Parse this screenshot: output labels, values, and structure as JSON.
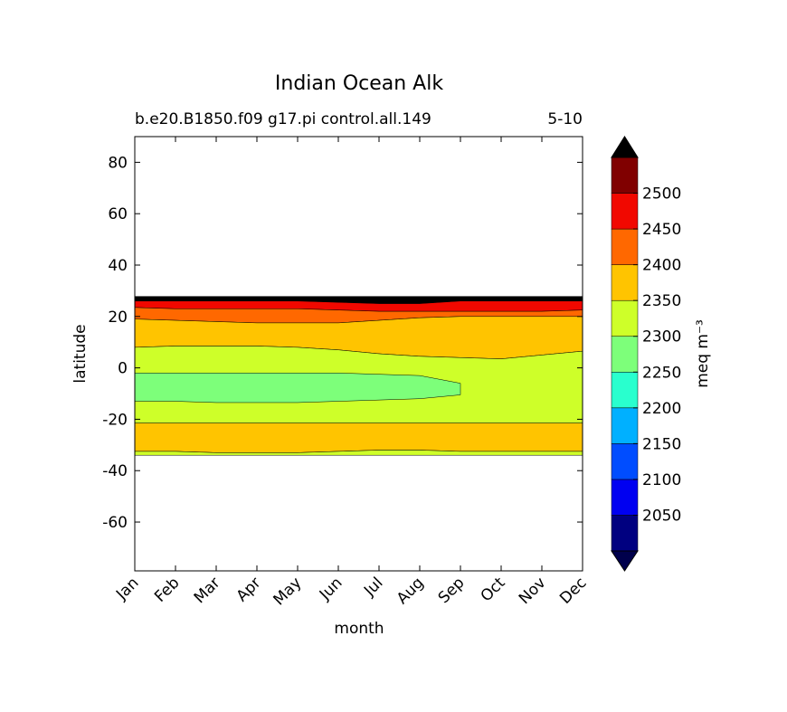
{
  "chart_data": {
    "type": "contourf",
    "title": "Indian Ocean Alk",
    "subtitle_left": "b.e20.B1850.f09 g17.pi control.all.149",
    "subtitle_right": "5-10",
    "xlabel": "month",
    "ylabel": "latitude",
    "categories": [
      "Jan",
      "Feb",
      "Mar",
      "Apr",
      "May",
      "Jun",
      "Jul",
      "Aug",
      "Sep",
      "Oct",
      "Nov",
      "Dec"
    ],
    "ylim": [
      -79,
      90
    ],
    "yticks": [
      80,
      60,
      40,
      20,
      0,
      -20,
      -40,
      -60
    ],
    "bands": [
      {
        "color": "#000000",
        "north": [
          27.8,
          27.8,
          27.8,
          27.8,
          27.8,
          27.8,
          27.8,
          27.8,
          27.8,
          27.8,
          27.8,
          27.8
        ],
        "south": [
          26,
          26,
          26,
          26,
          26,
          25.5,
          25,
          25,
          26,
          26,
          26,
          26
        ]
      },
      {
        "color": "#f10800",
        "north": [
          26,
          26,
          26,
          26,
          26,
          25.5,
          25,
          25,
          26,
          26,
          26,
          26
        ],
        "south": [
          23.5,
          23,
          23,
          23,
          23,
          22.5,
          22,
          22,
          22,
          22,
          22,
          22.5
        ]
      },
      {
        "color": "#ff6800",
        "north": [
          23.5,
          23,
          23,
          23,
          23,
          22.5,
          22,
          22,
          22,
          22,
          22,
          22.5
        ],
        "south": [
          19,
          18.5,
          18,
          17.5,
          17.5,
          17.5,
          18.5,
          19.5,
          20,
          20,
          20,
          20
        ]
      },
      {
        "color": "#ffc400",
        "north": [
          19,
          18.5,
          18,
          17.5,
          17.5,
          17.5,
          18.5,
          19.5,
          20,
          20,
          20,
          20
        ],
        "south": [
          8,
          8.5,
          8.5,
          8.5,
          8,
          7,
          5.5,
          4.5,
          4,
          3.5,
          5,
          6.5
        ]
      },
      {
        "color": "#ceff29",
        "north": [
          8,
          8.5,
          8.5,
          8.5,
          8,
          7,
          5.5,
          4.5,
          4,
          3.5,
          5,
          6.5
        ],
        "south": [
          -21.5,
          -21.5,
          -21.5,
          -21.5,
          -21.5,
          -21.5,
          -21.5,
          -21.5,
          -21.5,
          -21.5,
          -21.5,
          -21.5
        ]
      },
      {
        "color": "#ffc400",
        "north": [
          -21.5,
          -21.5,
          -21.5,
          -21.5,
          -21.5,
          -21.5,
          -21.5,
          -21.5,
          -21.5,
          -21.5,
          -21.5,
          -21.5
        ],
        "south": [
          -32.5,
          -32.5,
          -33,
          -33,
          -33,
          -32.5,
          -32,
          -32,
          -32.5,
          -32.5,
          -32.5,
          -32.5
        ]
      },
      {
        "color": "#ceff29",
        "north": [
          -32.5,
          -32.5,
          -33,
          -33,
          -33,
          -32.5,
          -32,
          -32,
          -32.5,
          -32.5,
          -32.5,
          -32.5
        ],
        "south": [
          -34,
          -34,
          -34,
          -34,
          -34,
          -34,
          -34,
          -34,
          -34,
          -34,
          -34,
          -34
        ]
      },
      {
        "color": "#7dff7a",
        "north": [
          -2,
          -2,
          -2,
          -2,
          -2,
          -2,
          -2.5,
          -3,
          -6,
          null,
          null,
          null
        ],
        "south": [
          -13,
          -13,
          -13.5,
          -13.5,
          -13.5,
          -13,
          -12.5,
          -12,
          -10.5,
          null,
          null,
          null
        ]
      }
    ],
    "colorbar": {
      "label": "meq m⁻³",
      "levels": [
        2000,
        2050,
        2100,
        2150,
        2200,
        2250,
        2300,
        2350,
        2400,
        2450,
        2500,
        2550
      ],
      "colors": [
        "#000080",
        "#0000f1",
        "#004dff",
        "#00b0ff",
        "#29ffce",
        "#7dff7a",
        "#ceff29",
        "#ffc400",
        "#ff6800",
        "#f10800",
        "#800000"
      ],
      "extend_colors": [
        "#00004c",
        "#000000"
      ],
      "ticks": [
        2050,
        2100,
        2150,
        2200,
        2250,
        2300,
        2350,
        2400,
        2450,
        2500
      ]
    }
  }
}
